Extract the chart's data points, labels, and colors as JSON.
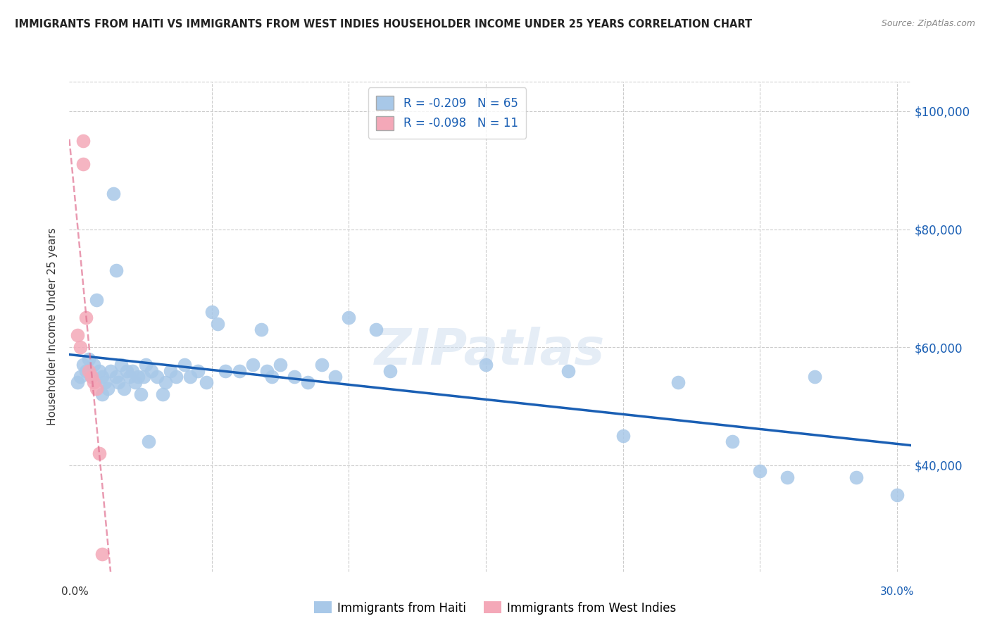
{
  "title": "IMMIGRANTS FROM HAITI VS IMMIGRANTS FROM WEST INDIES HOUSEHOLDER INCOME UNDER 25 YEARS CORRELATION CHART",
  "source": "Source: ZipAtlas.com",
  "ylabel": "Householder Income Under 25 years",
  "ytick_labels": [
    "$100,000",
    "$80,000",
    "$60,000",
    "$40,000"
  ],
  "ytick_values": [
    100000,
    80000,
    60000,
    40000
  ],
  "ylim_low": 22000,
  "ylim_high": 105000,
  "xlim_low": -0.002,
  "xlim_high": 0.305,
  "watermark": "ZIPatlas",
  "haiti_color": "#a8c8e8",
  "wi_color": "#f4a8b8",
  "haiti_line_color": "#1a5fb4",
  "wi_line_color": "#e07090",
  "haiti_x": [
    0.001,
    0.002,
    0.003,
    0.004,
    0.005,
    0.006,
    0.007,
    0.008,
    0.009,
    0.01,
    0.01,
    0.011,
    0.012,
    0.013,
    0.014,
    0.015,
    0.015,
    0.016,
    0.017,
    0.018,
    0.019,
    0.02,
    0.021,
    0.022,
    0.023,
    0.024,
    0.025,
    0.026,
    0.027,
    0.028,
    0.03,
    0.032,
    0.033,
    0.035,
    0.037,
    0.04,
    0.042,
    0.045,
    0.048,
    0.05,
    0.052,
    0.055,
    0.06,
    0.065,
    0.068,
    0.07,
    0.072,
    0.075,
    0.08,
    0.085,
    0.09,
    0.095,
    0.1,
    0.11,
    0.115,
    0.15,
    0.18,
    0.2,
    0.22,
    0.24,
    0.25,
    0.26,
    0.27,
    0.285,
    0.3
  ],
  "haiti_y": [
    54000,
    55000,
    57000,
    56000,
    58000,
    55000,
    57000,
    68000,
    56000,
    55000,
    52000,
    54000,
    53000,
    56000,
    86000,
    73000,
    55000,
    54000,
    57000,
    53000,
    56000,
    55000,
    56000,
    54000,
    55000,
    52000,
    55000,
    57000,
    44000,
    56000,
    55000,
    52000,
    54000,
    56000,
    55000,
    57000,
    55000,
    56000,
    54000,
    66000,
    64000,
    56000,
    56000,
    57000,
    63000,
    56000,
    55000,
    57000,
    55000,
    54000,
    57000,
    55000,
    65000,
    63000,
    56000,
    57000,
    56000,
    45000,
    54000,
    44000,
    39000,
    38000,
    55000,
    38000,
    35000
  ],
  "wi_x": [
    0.001,
    0.002,
    0.003,
    0.003,
    0.004,
    0.005,
    0.006,
    0.007,
    0.008,
    0.009,
    0.01
  ],
  "wi_y": [
    62000,
    60000,
    91000,
    95000,
    65000,
    56000,
    55000,
    54000,
    53000,
    42000,
    25000
  ],
  "legend_label_haiti": "R = -0.209   N = 65",
  "legend_label_wi": "R = -0.098   N = 11",
  "bottom_label_haiti": "Immigrants from Haiti",
  "bottom_label_wi": "Immigrants from West Indies",
  "xticks": [
    0.0,
    0.05,
    0.1,
    0.15,
    0.2,
    0.25,
    0.3
  ],
  "grid_xticks": [
    0.05,
    0.1,
    0.15,
    0.2,
    0.25,
    0.3
  ]
}
